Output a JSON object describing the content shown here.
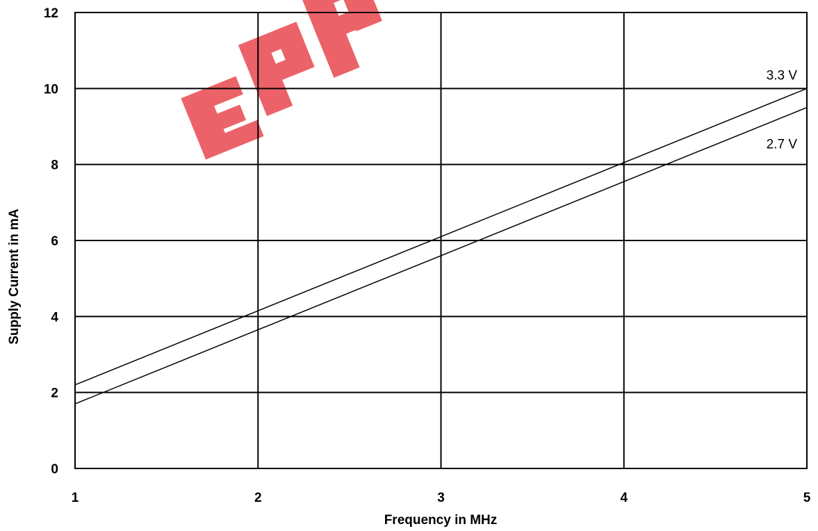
{
  "chart_data": {
    "type": "line",
    "title": "",
    "xlabel": "Frequency in MHz",
    "ylabel": "Supply Current in mA",
    "xlim": [
      1,
      5
    ],
    "ylim": [
      0,
      12
    ],
    "x_ticks": [
      "1",
      "2",
      "3",
      "4",
      "5"
    ],
    "y_ticks": [
      "0",
      "2",
      "4",
      "6",
      "8",
      "10",
      "12"
    ],
    "grid": true,
    "series": [
      {
        "name": "3.3 V",
        "x": [
          1,
          5
        ],
        "y": [
          2.2,
          10.0
        ]
      },
      {
        "name": "2.7 V",
        "x": [
          1,
          5
        ],
        "y": [
          1.7,
          9.5
        ]
      }
    ]
  },
  "watermark": {
    "color": "#e8484e"
  }
}
